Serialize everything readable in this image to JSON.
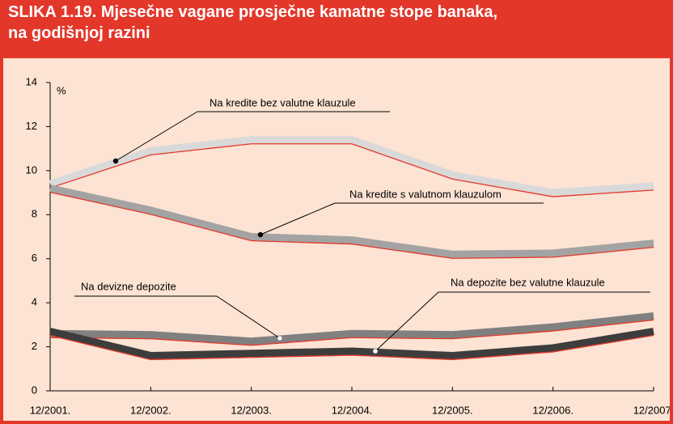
{
  "chart_data": {
    "type": "line",
    "title": [
      "SLIKA 1.19. Mjesečne vagane prosječne kamatne stope banaka,",
      "na godišnjoj razini"
    ],
    "y_label": "%",
    "categories": [
      "12/2001.",
      "12/2002.",
      "12/2003.",
      "12/2004.",
      "12/2005.",
      "12/2006.",
      "12/2007."
    ],
    "ylim": [
      0,
      14
    ],
    "yticks": [
      0,
      2,
      4,
      6,
      8,
      10,
      12,
      14
    ],
    "series": [
      {
        "name": "Na kredite bez valutne klauzule",
        "color": "#d9d9d9",
        "values": [
          9.4,
          10.9,
          11.4,
          11.4,
          9.8,
          9.0,
          9.3
        ]
      },
      {
        "name": "Na kredite s valutnom klauzulom",
        "color": "#a3a3a3",
        "values": [
          9.2,
          8.2,
          7.0,
          6.85,
          6.2,
          6.25,
          6.7
        ]
      },
      {
        "name": "Na devizne depozite",
        "color": "#808080",
        "values": [
          2.6,
          2.55,
          2.25,
          2.6,
          2.55,
          2.9,
          3.4
        ]
      },
      {
        "name": "Na depozite bez valutne klauzule",
        "color": "#3d3d3d",
        "values": [
          2.7,
          1.6,
          1.7,
          1.8,
          1.6,
          1.95,
          2.7
        ]
      }
    ]
  }
}
